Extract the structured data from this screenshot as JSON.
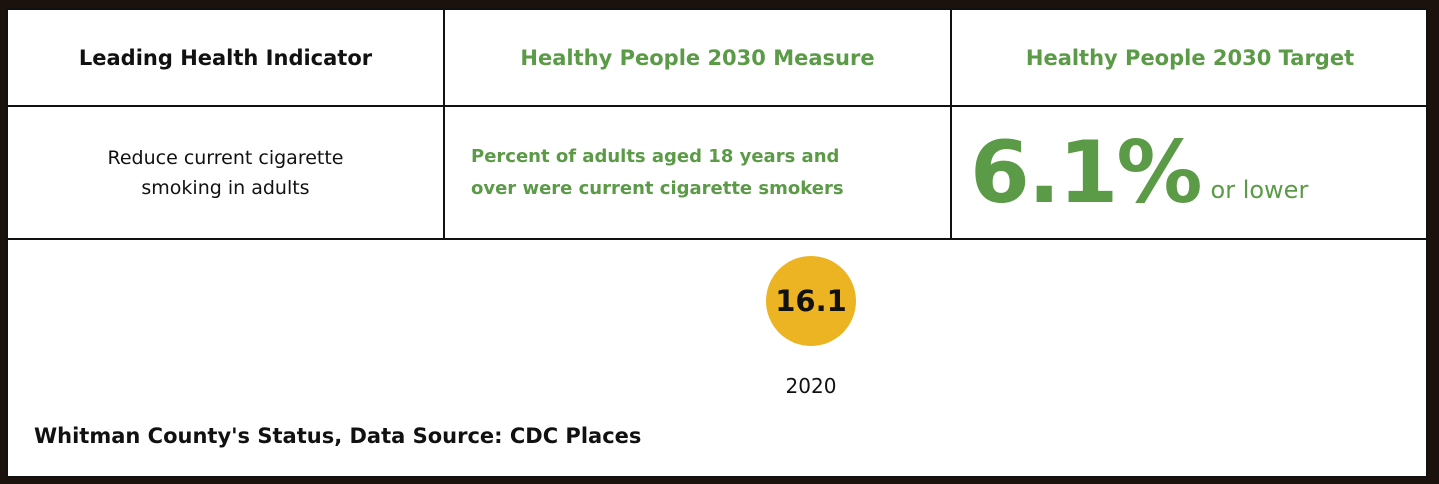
{
  "table": {
    "headers": [
      "Leading Health Indicator",
      "Healthy People 2030 Measure",
      "Healthy People 2030 Target"
    ],
    "indicator": [
      "Reduce current cigarette",
      "smoking in adults"
    ],
    "measure": [
      "Percent of adults aged 18 years and",
      "over were current cigarette smokers"
    ],
    "target": {
      "value": "6.1%",
      "suffix": "or lower"
    }
  },
  "status": {
    "value": "16.1",
    "year": "2020",
    "caption": "Whitman County's Status, Data Source: CDC Places"
  }
}
